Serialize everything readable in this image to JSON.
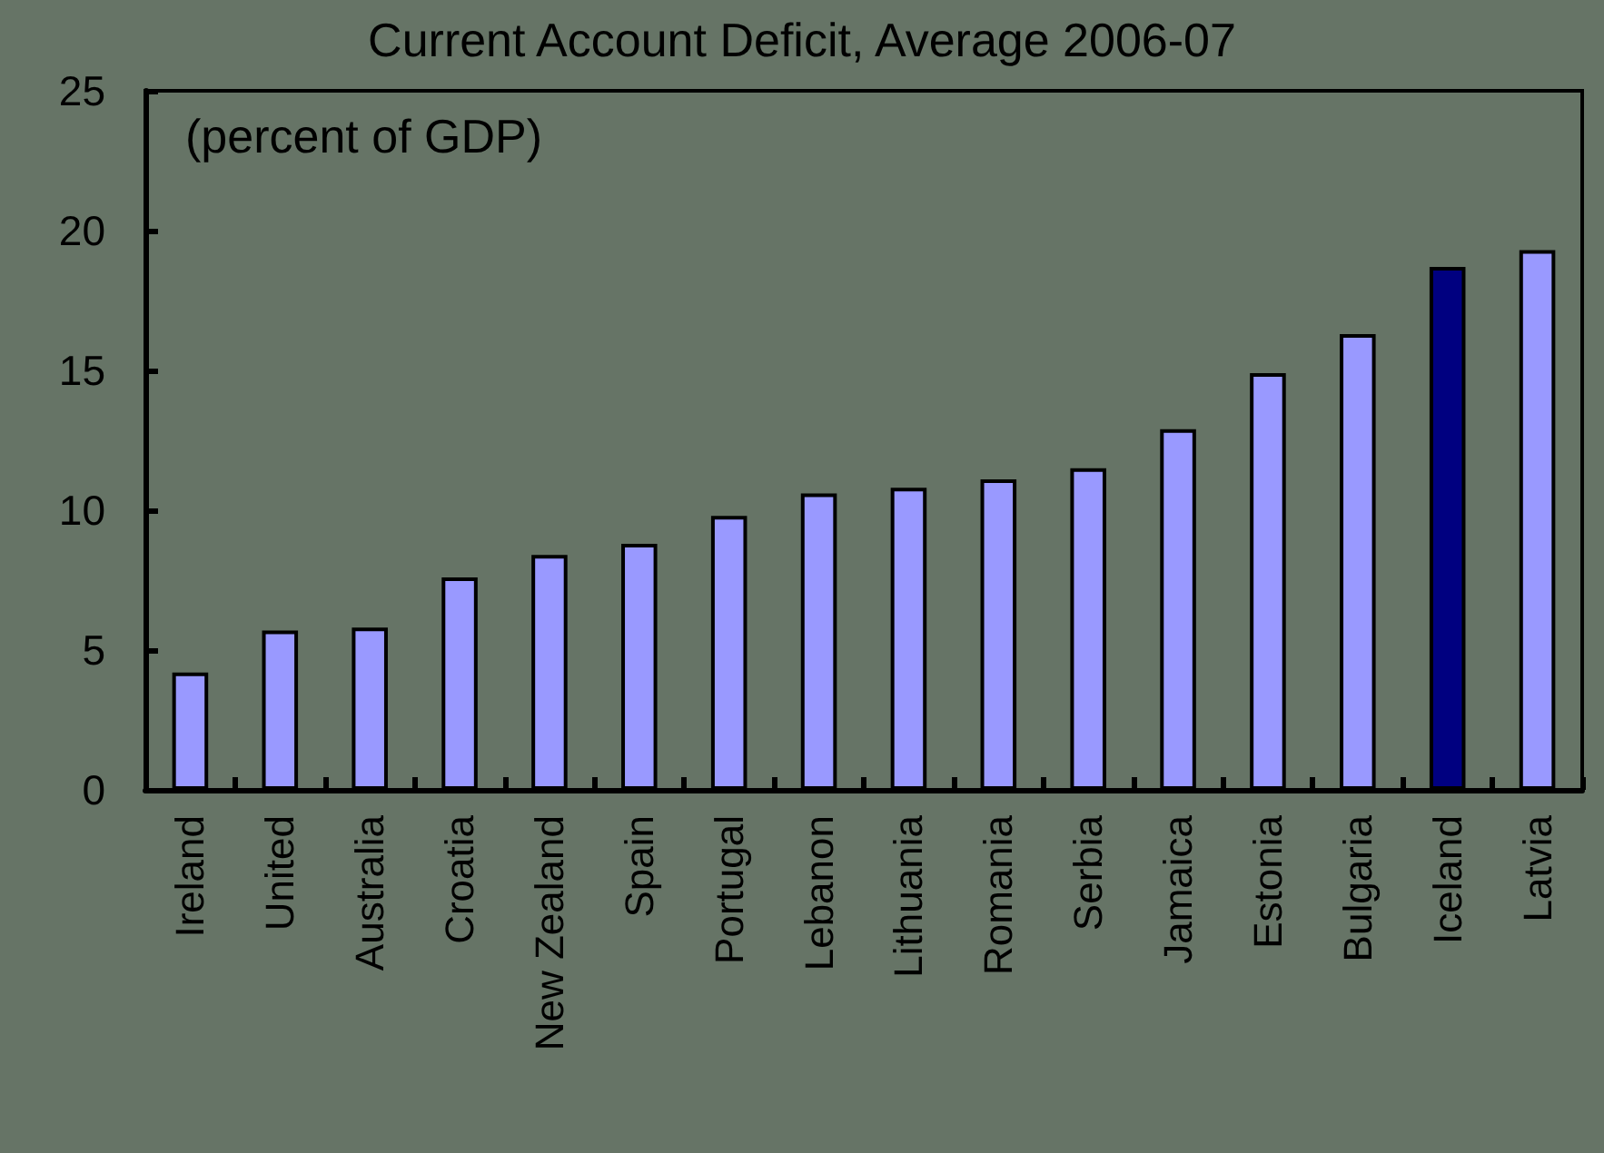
{
  "chart_data": {
    "type": "bar",
    "title": "Current Account Deficit, Average 2006-07",
    "annotations": [
      "(percent of GDP)"
    ],
    "categories": [
      "Ireland",
      "United",
      "Australia",
      "Croatia",
      "New Zealand",
      "Spain",
      "Portugal",
      "Lebanon",
      "Lithuania",
      "Romania",
      "Serbia",
      "Jamaica",
      "Estonia",
      "Bulgaria",
      "Iceland",
      "Latvia"
    ],
    "values": [
      4.2,
      5.7,
      5.8,
      7.6,
      8.4,
      8.8,
      9.8,
      10.6,
      10.8,
      11.1,
      11.5,
      12.9,
      14.9,
      16.3,
      18.7,
      19.3
    ],
    "colors": [
      "#9999ff",
      "#9999ff",
      "#9999ff",
      "#9999ff",
      "#9999ff",
      "#9999ff",
      "#9999ff",
      "#9999ff",
      "#9999ff",
      "#9999ff",
      "#9999ff",
      "#9999ff",
      "#9999ff",
      "#9999ff",
      "#000080",
      "#9999ff"
    ],
    "ylim": [
      0,
      25
    ],
    "yticks": [
      0,
      5,
      10,
      15,
      20,
      25
    ],
    "grid": false
  }
}
